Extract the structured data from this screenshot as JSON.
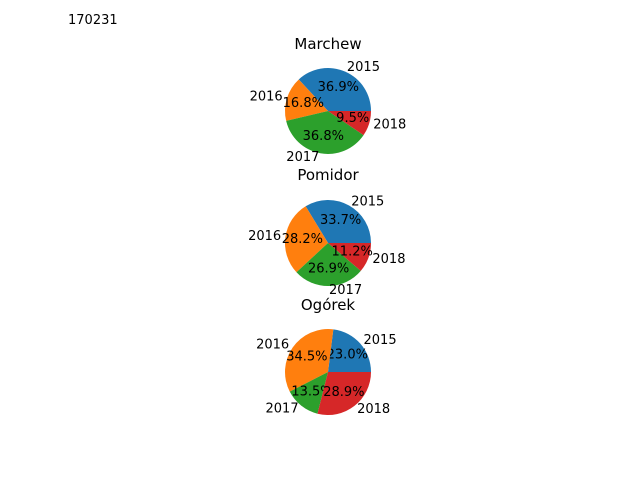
{
  "figure_id": "170231",
  "chart_data": [
    {
      "type": "pie",
      "title": "Marchew",
      "labels": [
        "2015",
        "2016",
        "2017",
        "2018"
      ],
      "values": [
        36.9,
        16.8,
        36.8,
        9.5
      ],
      "pct_labels": [
        "36.9%",
        "16.8%",
        "36.8%",
        "9.5%"
      ],
      "colors": [
        "#1f77b4",
        "#ff7f0e",
        "#2ca02c",
        "#d62728"
      ]
    },
    {
      "type": "pie",
      "title": "Pomidor",
      "labels": [
        "2015",
        "2016",
        "2017",
        "2018"
      ],
      "values": [
        33.7,
        28.2,
        26.9,
        11.2
      ],
      "pct_labels": [
        "33.7%",
        "28.2%",
        "26.9%",
        "11.2%"
      ],
      "colors": [
        "#1f77b4",
        "#ff7f0e",
        "#2ca02c",
        "#d62728"
      ]
    },
    {
      "type": "pie",
      "title": "Ogórek",
      "labels": [
        "2015",
        "2016",
        "2017",
        "2018"
      ],
      "values": [
        23.0,
        34.5,
        13.5,
        28.9
      ],
      "pct_labels": [
        "23.0%",
        "34.5%",
        "13.5%",
        "28.9%"
      ],
      "colors": [
        "#1f77b4",
        "#ff7f0e",
        "#2ca02c",
        "#d62728"
      ]
    }
  ]
}
